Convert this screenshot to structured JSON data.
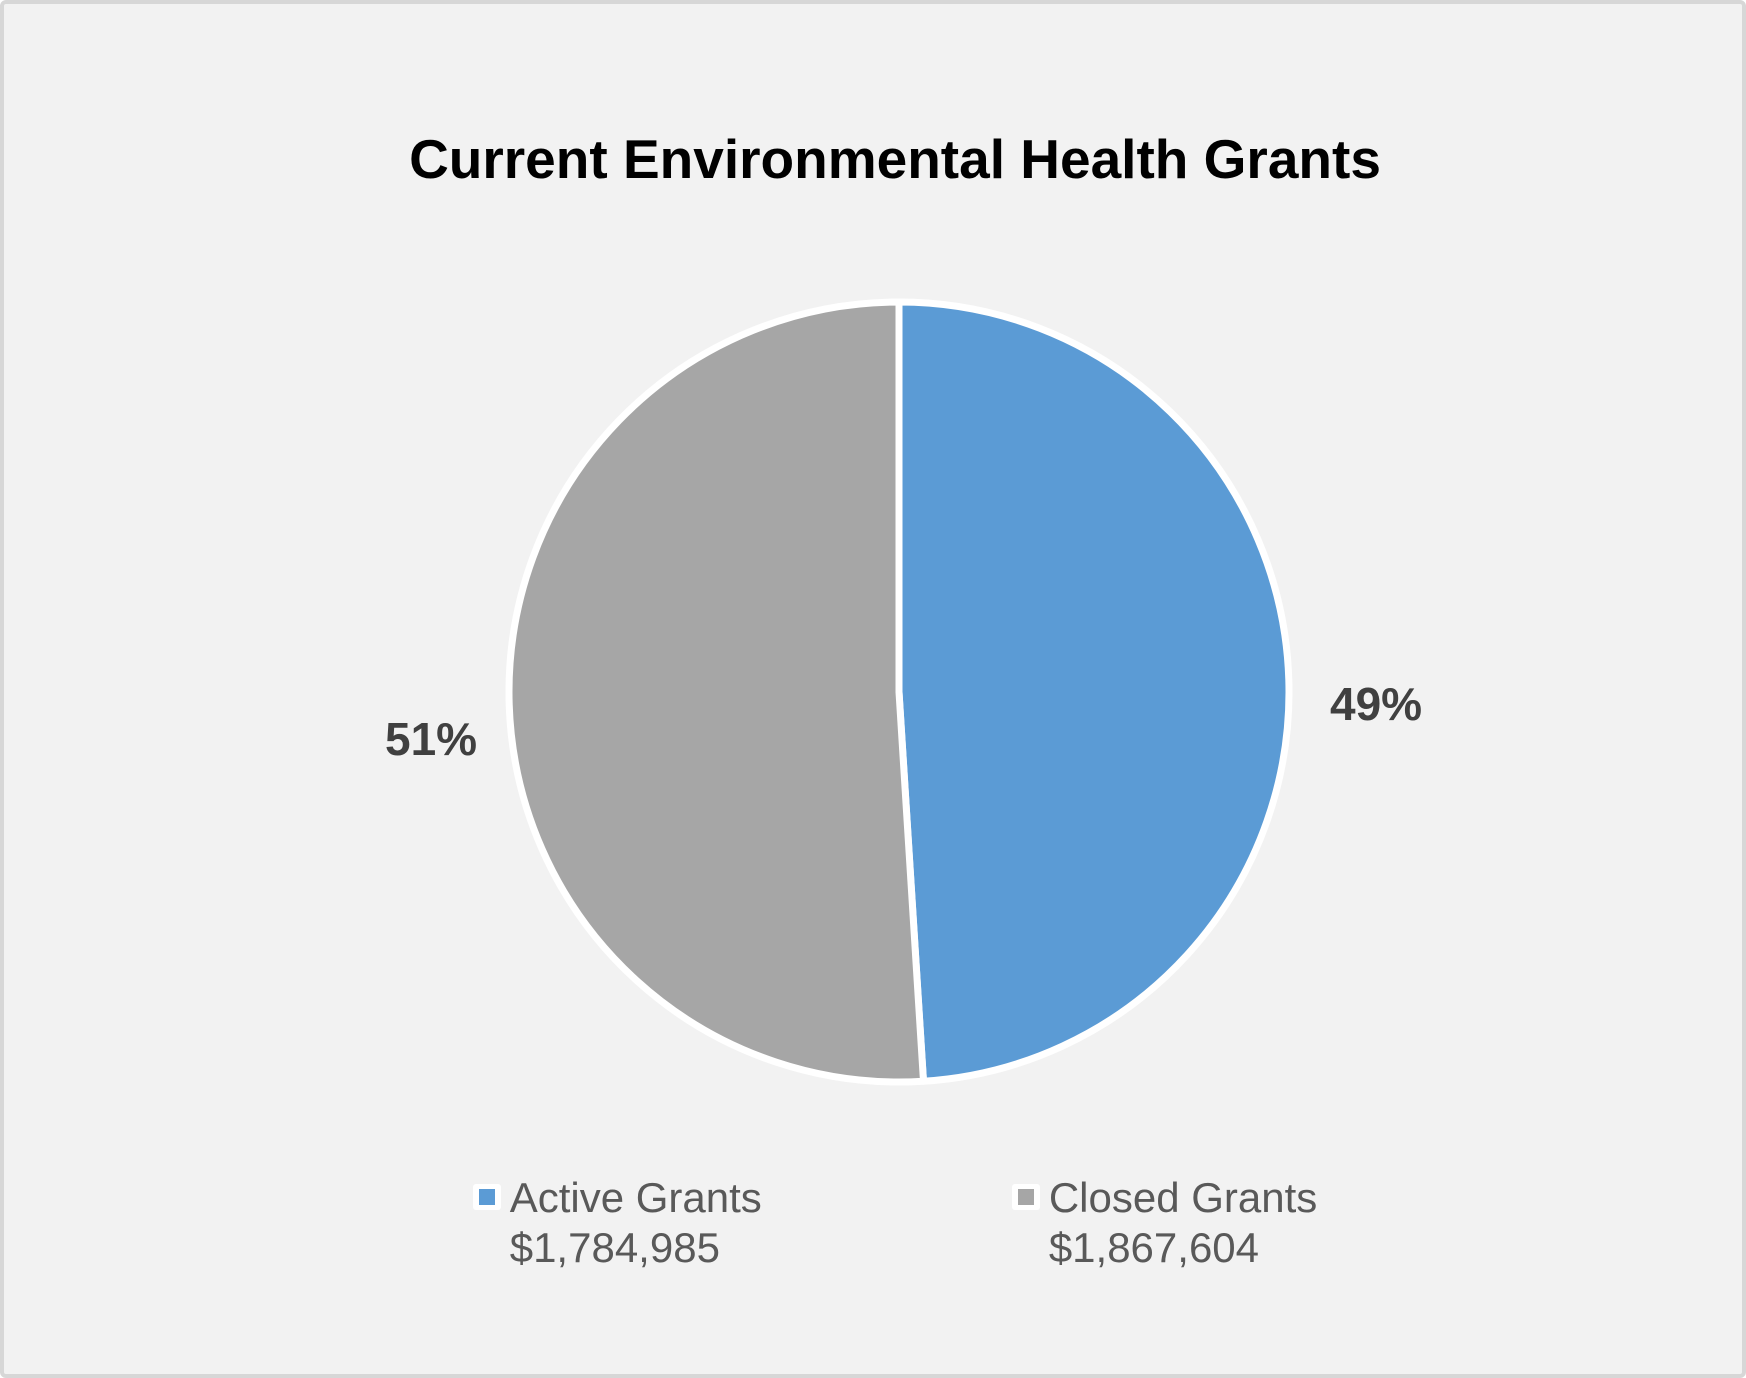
{
  "chart_data": {
    "type": "pie",
    "title": "Current Environmental Health Grants",
    "legend_position": "bottom",
    "data_labels": "percent, outside end",
    "start_angle_deg": 0,
    "direction": "clockwise",
    "slices": [
      {
        "name": "Active Grants",
        "amount": 1784985,
        "amount_display": "$1,784,985",
        "percent": 49,
        "percent_display": "49%",
        "color": "#5B9BD5"
      },
      {
        "name": "Closed Grants",
        "amount": 1867604,
        "amount_display": "$1,867,604",
        "percent": 51,
        "percent_display": "51%",
        "color": "#A6A6A6"
      }
    ]
  },
  "colors": {
    "canvas_background": "#F2F2F2",
    "canvas_border": "#D7D7D7",
    "slice_border": "#FFFFFF",
    "title_text": "#000000",
    "percent_label_text": "#404040",
    "legend_text": "#595959",
    "legend_marker_chip_background": "#FFFFFF"
  }
}
